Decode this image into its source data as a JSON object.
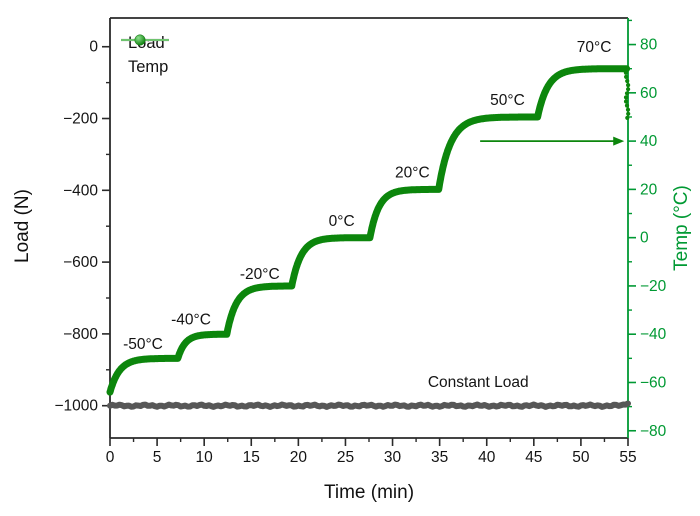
{
  "colors": {
    "background": "#ffffff",
    "spine_black": "#2a2a2a",
    "text_black": "#141414",
    "axis_green": "#009933",
    "temp_curve_green": "#0c860c",
    "load_curve_gray": "#575757",
    "legend_load_line": "#929292",
    "legend_load_marker": "#3f3f3f",
    "legend_temp_line": "#6fc46f",
    "legend_temp_marker": "#0f9b0f"
  },
  "legend": {
    "items": [
      {
        "label": "Load",
        "series": "load"
      },
      {
        "label": "Temp",
        "series": "temp"
      }
    ]
  },
  "chart_data": {
    "type": "line",
    "title": "",
    "xlabel": "Time (min)",
    "ylabel_left": "Load (N)",
    "ylabel_right": "Temp (°C)",
    "x_range": [
      0,
      55
    ],
    "y_left_range": [
      -1090,
      80
    ],
    "y_right_range": [
      -83,
      91
    ],
    "grid": false,
    "legend_position": "top-left-inside",
    "x_ticks": {
      "major_values": [
        0,
        5,
        10,
        15,
        20,
        25,
        30,
        35,
        40,
        45,
        50,
        55
      ],
      "major_labels": [
        "0",
        "5",
        "10",
        "15",
        "20",
        "25",
        "30",
        "35",
        "40",
        "45",
        "50",
        "55"
      ],
      "minor_values": [
        2.5,
        7.5,
        12.5,
        17.5,
        22.5,
        27.5,
        32.5,
        37.5,
        42.5,
        47.5,
        52.5
      ]
    },
    "y_left_ticks": {
      "major_values": [
        0,
        -200,
        -400,
        -600,
        -800,
        -1000
      ],
      "major_labels": [
        "0",
        "−200",
        "−400",
        "−600",
        "−800",
        "−1000"
      ],
      "minor_values": [
        -100,
        -300,
        -500,
        -700,
        -900
      ]
    },
    "y_right_ticks": {
      "major_values": [
        80,
        60,
        40,
        20,
        0,
        -20,
        -40,
        -60,
        -80
      ],
      "major_labels": [
        "80",
        "60",
        "40",
        "20",
        "0",
        "−20",
        "−40",
        "−60",
        "−80"
      ],
      "minor_values": [
        90,
        70,
        50,
        30,
        10,
        -10,
        -30,
        -50,
        -70
      ]
    },
    "series": [
      {
        "name": "Load",
        "axis": "left",
        "color": "#575757",
        "shape": "constant",
        "value": -1000,
        "t_start": 0,
        "t_end": 55
      },
      {
        "name": "Temp",
        "axis": "right",
        "color": "#0c860c",
        "shape": "staircase",
        "initial": {
          "t": 0,
          "temp": -64
        },
        "plateau_levels_c": [
          -50,
          -40,
          -20,
          0,
          20,
          50,
          70
        ],
        "steps": [
          {
            "target": -50,
            "ramp_start": 0.0,
            "tau": 1.0,
            "hold_until": 7.2
          },
          {
            "target": -40,
            "ramp_start": 7.2,
            "tau": 0.8,
            "hold_until": 12.4
          },
          {
            "target": -20,
            "ramp_start": 12.4,
            "tau": 1.0,
            "hold_until": 19.3
          },
          {
            "target": 0,
            "ramp_start": 19.3,
            "tau": 1.0,
            "hold_until": 27.6
          },
          {
            "target": 20,
            "ramp_start": 27.6,
            "tau": 0.95,
            "hold_until": 34.9
          },
          {
            "target": 50,
            "ramp_start": 34.9,
            "tau": 1.25,
            "hold_until": 45.4
          },
          {
            "target": 70,
            "ramp_start": 45.4,
            "tau": 1.1,
            "hold_until": 54.85
          }
        ],
        "end_drop": {
          "t": 54.9,
          "from": 70,
          "to": 48
        }
      }
    ],
    "annotations": [
      {
        "text": "-50°C",
        "t": 3.5,
        "value": -44,
        "axis": "right"
      },
      {
        "text": "-40°C",
        "t": 8.6,
        "value": -34,
        "axis": "right"
      },
      {
        "text": "-20°C",
        "t": 15.9,
        "value": -15,
        "axis": "right"
      },
      {
        "text": "0°C",
        "t": 24.6,
        "value": 7,
        "axis": "right"
      },
      {
        "text": "20°C",
        "t": 32.1,
        "value": 27,
        "axis": "right"
      },
      {
        "text": "50°C",
        "t": 42.2,
        "value": 57,
        "axis": "right"
      },
      {
        "text": "70°C",
        "t": 51.4,
        "value": 79,
        "axis": "right"
      },
      {
        "text": "Constant Load",
        "t": 39.1,
        "value": -934,
        "axis": "left"
      }
    ],
    "arrow": {
      "axis": "right",
      "temp": 40,
      "t_start": 39.3,
      "t_end": 54.6,
      "direction": "right",
      "color": "#0c860c"
    }
  }
}
